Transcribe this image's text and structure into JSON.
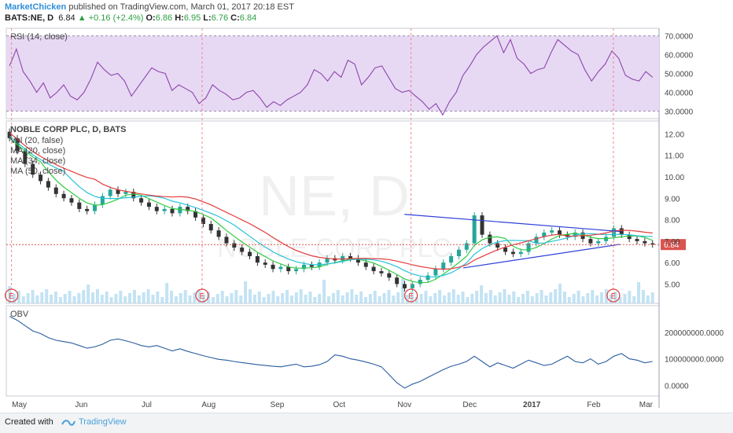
{
  "header": {
    "author": "MarketChicken",
    "published": "published on TradingView.com, March 01, 2017 20:18 EST",
    "symbol": "BATS:NE, D",
    "last": "6.84",
    "change": "+0.16 (+2.4%)",
    "open_label": "O:",
    "open": "6.86",
    "high_label": "H:",
    "high": "6.95",
    "low_label": "L:",
    "low": "6.76",
    "close_label": "C:",
    "close": "6.84"
  },
  "footer": {
    "created": "Created with",
    "brand": "TradingView"
  },
  "colors": {
    "up": "#26a69a",
    "down": "#333333",
    "ma20": "#2ecc40",
    "ma34": "#27c3d8",
    "ma50": "#e33b3b",
    "rsi": "#8e44ad",
    "rsi_band": "#e7d9f3",
    "obv": "#2a5d9f",
    "trendline": "#2f3fd8",
    "price_tag": "#d9534f",
    "volume": "#a9d7ee"
  },
  "chart_data": [
    {
      "type": "line",
      "title": "RSI (14, close)",
      "yticks": [
        "70.0000",
        "60.0000",
        "50.0000",
        "40.0000",
        "30.0000"
      ],
      "ylim": [
        26,
        74
      ],
      "band": [
        30,
        70
      ],
      "values": [
        54,
        63,
        51,
        46,
        40,
        45,
        37,
        40,
        44,
        38,
        36,
        40,
        47,
        56,
        52,
        49,
        50,
        46,
        38,
        43,
        48,
        53,
        51,
        50,
        41,
        44,
        42,
        40,
        34,
        37,
        44,
        41,
        39,
        36,
        37,
        40,
        41,
        37,
        32,
        35,
        33,
        36,
        38,
        40,
        44,
        52,
        50,
        46,
        51,
        48,
        57,
        55,
        44,
        48,
        53,
        54,
        48,
        42,
        40,
        41,
        38,
        35,
        31,
        34,
        28,
        35,
        40,
        49,
        54,
        60,
        64,
        67,
        70,
        61,
        68,
        58,
        55,
        50,
        52,
        53,
        61,
        68,
        65,
        62,
        60,
        52,
        46,
        51,
        55,
        62,
        58,
        49,
        47,
        46,
        51,
        48
      ]
    },
    {
      "type": "candlestick",
      "title": "NOBLE CORP PLC, D, BATS",
      "watermark_symbol": "NE, D",
      "watermark_name": "NOBLE CORP PLC",
      "legend": [
        "Vol (20, false)",
        "MA (20, close)",
        "MA (34, close)",
        "MA (50, close)"
      ],
      "yticks": [
        "12.00",
        "11.00",
        "10.00",
        "9.00",
        "8.00",
        "7.00",
        "6.00",
        "5.00"
      ],
      "ylim": [
        4.1,
        12.6
      ],
      "last_price": "6.84",
      "last_value": 6.84,
      "earnings_marker": "E",
      "earnings_dates": [
        "2016-05-02",
        "2016-07-28",
        "2016-10-31",
        "2017-02-06"
      ],
      "closes": [
        11.8,
        11.2,
        10.6,
        10.1,
        9.8,
        9.5,
        9.2,
        9.0,
        8.8,
        8.5,
        8.4,
        8.7,
        9.1,
        9.4,
        9.2,
        9.3,
        9.0,
        8.8,
        8.6,
        8.4,
        8.5,
        8.3,
        8.6,
        8.4,
        8.1,
        7.8,
        7.5,
        7.2,
        6.9,
        6.7,
        6.5,
        6.3,
        6.0,
        5.9,
        5.7,
        5.8,
        5.6,
        5.7,
        5.9,
        5.8,
        6.0,
        6.2,
        6.1,
        6.3,
        6.2,
        6.0,
        5.8,
        5.6,
        5.5,
        5.3,
        5.0,
        4.8,
        5.0,
        5.2,
        5.4,
        5.7,
        6.0,
        6.3,
        6.6,
        6.9,
        8.2,
        7.3,
        6.9,
        6.7,
        6.5,
        6.4,
        6.5,
        6.9,
        7.2,
        7.4,
        7.5,
        7.3,
        7.2,
        7.4,
        7.1,
        6.9,
        7.0,
        7.2,
        7.6,
        7.3,
        7.1,
        7.0,
        6.9,
        6.84
      ],
      "x_tick_labels": [
        "May",
        "Jun",
        "Jul",
        "Aug",
        "Sep",
        "Oct",
        "Nov",
        "Dec",
        "2017",
        "Feb",
        "Mar"
      ],
      "trendline_upper": [
        [
          0.61,
          8.25
        ],
        [
          0.94,
          7.45
        ]
      ],
      "trendline_lower": [
        [
          0.7,
          5.75
        ],
        [
          0.94,
          6.85
        ]
      ]
    },
    {
      "type": "line",
      "title": "OBV",
      "yticks": [
        "200000000.0000",
        "100000000.0000",
        "0.0000"
      ],
      "ylim": [
        -40000000,
        300000000
      ],
      "values": [
        260,
        245,
        225,
        205,
        195,
        180,
        170,
        165,
        160,
        150,
        140,
        145,
        155,
        170,
        175,
        168,
        160,
        150,
        145,
        150,
        140,
        130,
        138,
        128,
        120,
        112,
        105,
        98,
        95,
        90,
        86,
        82,
        78,
        75,
        72,
        70,
        75,
        80,
        70,
        72,
        78,
        90,
        115,
        110,
        100,
        95,
        88,
        80,
        70,
        40,
        10,
        -10,
        5,
        15,
        30,
        45,
        60,
        72,
        80,
        90,
        110,
        90,
        70,
        85,
        75,
        65,
        80,
        95,
        85,
        75,
        80,
        95,
        110,
        90,
        85,
        100,
        80,
        90,
        110,
        120,
        100,
        95,
        85,
        90
      ]
    }
  ]
}
